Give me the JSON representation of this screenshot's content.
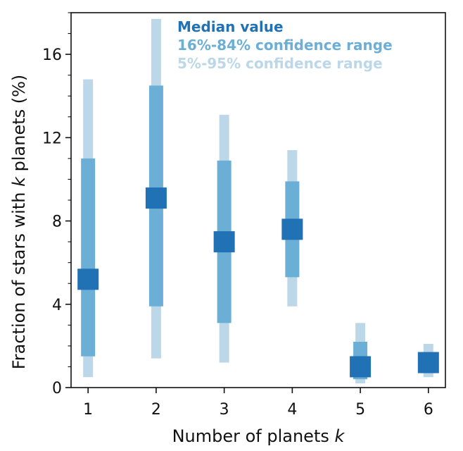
{
  "chart_data": {
    "type": "interval",
    "xlabel": "Number of planets",
    "xlabel_var": "k",
    "ylabel": "Fraction of stars with",
    "ylabel_var": "k",
    "ylabel_tail": "planets (%)",
    "x": [
      1,
      2,
      3,
      4,
      5,
      6
    ],
    "xlim": [
      0.75,
      6.25
    ],
    "ylim": [
      0,
      18
    ],
    "yticks": [
      0,
      4,
      8,
      12,
      16
    ],
    "yminor_step": 1,
    "median": [
      5.2,
      9.1,
      7.0,
      7.6,
      1.0,
      1.2
    ],
    "ci68": [
      [
        1.5,
        11.0
      ],
      [
        3.9,
        14.5
      ],
      [
        3.1,
        10.9
      ],
      [
        5.3,
        9.9
      ],
      [
        0.4,
        2.2
      ],
      [
        0.8,
        1.7
      ]
    ],
    "ci90": [
      [
        0.5,
        14.8
      ],
      [
        1.4,
        17.7
      ],
      [
        1.2,
        13.1
      ],
      [
        3.9,
        11.4
      ],
      [
        0.2,
        3.1
      ],
      [
        0.5,
        2.1
      ]
    ],
    "legend": [
      {
        "label": "Median value",
        "color": "#2171b5"
      },
      {
        "label": "16%-84% confidence range",
        "color": "#6baed6"
      },
      {
        "label": "5%-95% confidence range",
        "color": "#bcd7e8"
      }
    ],
    "legend_position": "top-center",
    "colors": {
      "median": "#2171b5",
      "ci68": "#6baed6",
      "ci90": "#bcd7e8"
    }
  }
}
